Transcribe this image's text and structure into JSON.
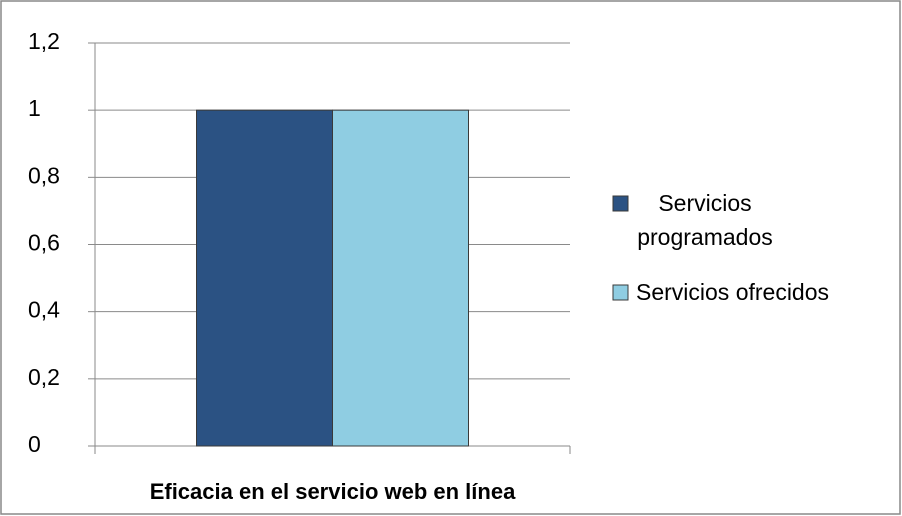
{
  "chart_data": {
    "type": "bar",
    "categories": [
      "Eficacia en el servicio web en línea"
    ],
    "series": [
      {
        "name": "Servicios programados",
        "color": "#2b5283",
        "values": [
          1
        ]
      },
      {
        "name": "Servicios ofrecidos",
        "color": "#8fcde2",
        "values": [
          1
        ]
      }
    ],
    "ylim": [
      0,
      1.2
    ],
    "yticks": [
      0,
      {
        "value": 0.2,
        "label": "0,2"
      },
      {
        "value": 0.4,
        "label": "0,4"
      },
      {
        "value": 0.6,
        "label": "0,6"
      },
      {
        "value": 0.8,
        "label": "0,8"
      },
      1,
      {
        "value": 1.2,
        "label": "1,2"
      }
    ],
    "grid": true,
    "legend": "right"
  }
}
